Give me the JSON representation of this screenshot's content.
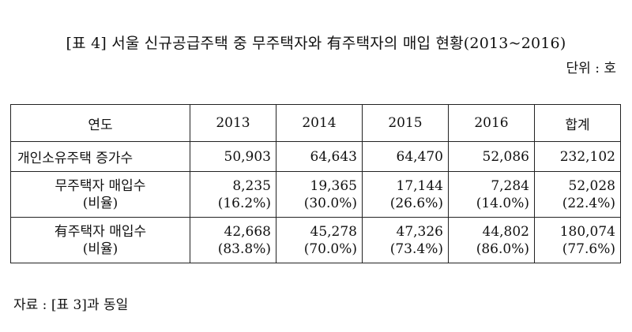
{
  "title": "[표 4] 서울 신규공급주택 중 무주택자와 有주택자의 매입 현황(2013~2016)",
  "unit": "단위 : 호",
  "table": {
    "headers": [
      "연도",
      "2013",
      "2014",
      "2015",
      "2016",
      "합계"
    ],
    "rows": [
      {
        "label": "개인소유주택 증가수",
        "sublabel": "",
        "values": [
          "50,903",
          "64,643",
          "64,470",
          "52,086",
          "232,102"
        ],
        "ratios": []
      },
      {
        "label": "무주택자 매입수",
        "sublabel": "(비율)",
        "values": [
          "8,235",
          "19,365",
          "17,144",
          "7,284",
          "52,028"
        ],
        "ratios": [
          "(16.2%)",
          "(30.0%)",
          "(26.6%)",
          "(14.0%)",
          "(22.4%)"
        ]
      },
      {
        "label": "有주택자 매입수",
        "sublabel": "(비율)",
        "values": [
          "42,668",
          "45,278",
          "47,326",
          "44,802",
          "180,074"
        ],
        "ratios": [
          "(83.8%)",
          "(70.0%)",
          "(73.4%)",
          "(86.0%)",
          "(77.6%)"
        ]
      }
    ]
  },
  "source": "자료 : [표 3]과 동일"
}
